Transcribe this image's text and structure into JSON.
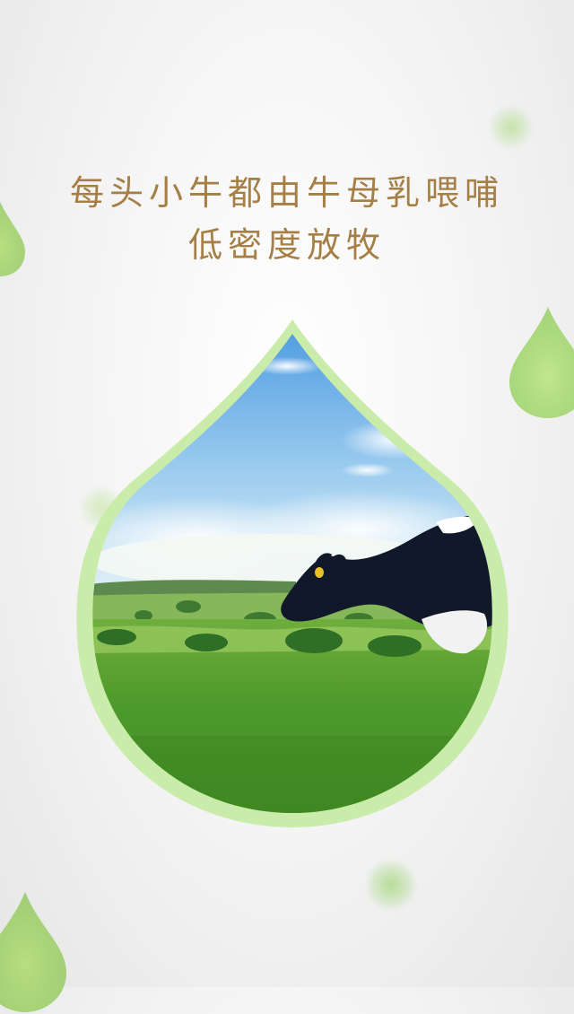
{
  "headline": {
    "line1": "每头小牛都由牛母乳喂哺",
    "line2": "低密度放牧"
  },
  "colors": {
    "headline": "#a57f45",
    "drop_border": "#c7eba6",
    "sky_top": "#4e9be0",
    "grass": "#4f9a2c"
  },
  "scene": {
    "subject": "cow grazing in green pasture",
    "icon": "photo-icon"
  }
}
